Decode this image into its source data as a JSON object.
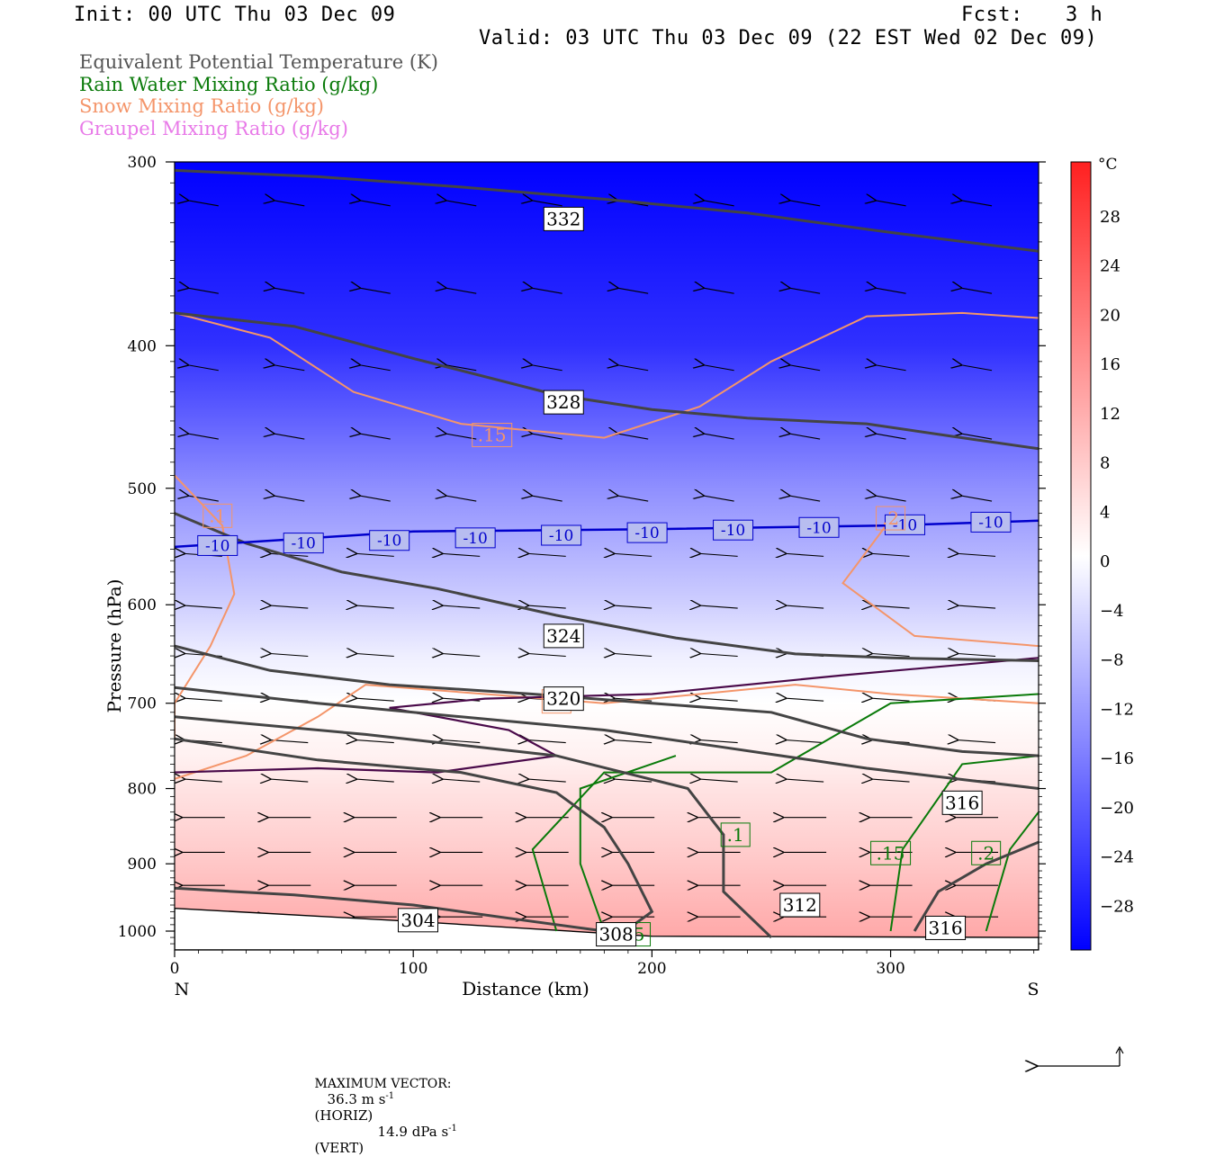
{
  "header": {
    "init": "Init: 00 UTC Thu 03 Dec 09",
    "fcst_label": "Fcst:",
    "fcst_value": "3 h",
    "valid": "Valid: 03 UTC Thu 03 Dec 09 (22 EST Wed 02 Dec 09)"
  },
  "legend": {
    "items": [
      {
        "label": "Equivalent Potential Temperature (K)",
        "color": "#555555"
      },
      {
        "label": "Rain Water Mixing Ratio (g/kg)",
        "color": "#0a7a0a"
      },
      {
        "label": "Snow Mixing Ratio (g/kg)",
        "color": "#f4956a"
      },
      {
        "label": "Graupel Mixing Ratio (g/kg)",
        "color": "#e87ae8"
      }
    ]
  },
  "footer": {
    "max_vector_label": "MAXIMUM VECTOR:",
    "horiz_value": "36.3 m s",
    "horiz_exp": "-1",
    "horiz_tag": "(HORIZ)",
    "vert_value": "14.9 dPa s",
    "vert_exp": "-1",
    "vert_tag": "(VERT)"
  },
  "chart_data": {
    "type": "heatmap",
    "xlabel": "Distance (km)",
    "ylabel": "Pressure (hPa)",
    "xlim": [
      0,
      362
    ],
    "ylim": [
      1030,
      300
    ],
    "y_scale": "log",
    "x_ticks": [
      0,
      100,
      200,
      300
    ],
    "y_ticks": [
      300,
      400,
      500,
      600,
      700,
      800,
      900,
      1000
    ],
    "end_labels": {
      "left": "N",
      "right": "S"
    },
    "colorbar": {
      "unit": "°C",
      "range": [
        -32,
        32
      ],
      "ticks": [
        28,
        24,
        20,
        16,
        12,
        8,
        4,
        0,
        -4,
        -8,
        -12,
        -16,
        -20,
        -24,
        -28
      ],
      "cold_color": "#0000ff",
      "warm_color": "#ff2020"
    },
    "theta_e_contours": [
      {
        "label": "332",
        "label_at": [
          163,
          328
        ],
        "points": [
          [
            0,
            304
          ],
          [
            60,
            307
          ],
          [
            120,
            312
          ],
          [
            180,
            318
          ],
          [
            240,
            325
          ],
          [
            300,
            335
          ],
          [
            362,
            345
          ]
        ]
      },
      {
        "label": "328",
        "label_at": [
          163,
          437
        ],
        "points": [
          [
            0,
            380
          ],
          [
            50,
            388
          ],
          [
            100,
            408
          ],
          [
            160,
            432
          ],
          [
            200,
            442
          ],
          [
            240,
            448
          ],
          [
            290,
            452
          ],
          [
            330,
            462
          ],
          [
            362,
            470
          ]
        ]
      },
      {
        "label": "324",
        "label_at": [
          163,
          630
        ],
        "points": [
          [
            0,
            520
          ],
          [
            30,
            545
          ],
          [
            70,
            570
          ],
          [
            110,
            585
          ],
          [
            160,
            610
          ],
          [
            210,
            632
          ],
          [
            260,
            648
          ],
          [
            300,
            652
          ],
          [
            362,
            655
          ]
        ]
      },
      {
        "label": "320",
        "label_at": [
          163,
          695
        ],
        "points": [
          [
            0,
            640
          ],
          [
            40,
            665
          ],
          [
            90,
            680
          ],
          [
            150,
            690
          ],
          [
            200,
            700
          ],
          [
            250,
            710
          ],
          [
            290,
            740
          ],
          [
            330,
            755
          ],
          [
            362,
            760
          ]
        ]
      },
      {
        "label": "316",
        "label_at": [
          330,
          818
        ],
        "points": [
          [
            0,
            683
          ],
          [
            60,
            700
          ],
          [
            120,
            715
          ],
          [
            180,
            730
          ],
          [
            230,
            750
          ],
          [
            290,
            775
          ],
          [
            362,
            800
          ]
        ]
      },
      {
        "label": "312",
        "label_at": [
          262,
          960
        ],
        "points": [
          [
            0,
            715
          ],
          [
            80,
            735
          ],
          [
            160,
            760
          ],
          [
            215,
            800
          ],
          [
            230,
            860
          ],
          [
            230,
            940
          ],
          [
            250,
            1010
          ]
        ]
      },
      {
        "label": "316",
        "label_at": [
          323,
          995
        ],
        "points": [
          [
            362,
            870
          ],
          [
            340,
            900
          ],
          [
            320,
            940
          ],
          [
            310,
            1000
          ]
        ]
      },
      {
        "label": "308",
        "label_at": [
          185,
          1005
        ],
        "points": [
          [
            0,
            740
          ],
          [
            60,
            765
          ],
          [
            120,
            780
          ],
          [
            160,
            805
          ],
          [
            180,
            850
          ],
          [
            190,
            900
          ],
          [
            200,
            970
          ],
          [
            185,
            1010
          ]
        ]
      },
      {
        "label": "304",
        "label_at": [
          102,
          983
        ],
        "points": [
          [
            0,
            935
          ],
          [
            50,
            945
          ],
          [
            100,
            960
          ],
          [
            140,
            980
          ],
          [
            180,
            1000
          ]
        ]
      }
    ],
    "temp_isotherm": {
      "label": "-10",
      "color": "#0000cc",
      "points": [
        [
          0,
          548
        ],
        [
          100,
          535
        ],
        [
          200,
          533
        ],
        [
          300,
          530
        ],
        [
          362,
          526
        ]
      ]
    },
    "snow_contours": [
      {
        "label": ".15",
        "label_at": [
          133,
          460
        ],
        "points": [
          [
            0,
            380
          ],
          [
            40,
            395
          ],
          [
            75,
            430
          ],
          [
            120,
            452
          ],
          [
            180,
            462
          ],
          [
            220,
            440
          ],
          [
            250,
            410
          ],
          [
            290,
            382
          ],
          [
            330,
            380
          ],
          [
            362,
            383
          ]
        ]
      },
      {
        "label": ".1",
        "label_at": [
          18,
          522
        ],
        "points": [
          [
            0,
            490
          ],
          [
            20,
            530
          ],
          [
            25,
            590
          ],
          [
            15,
            640
          ],
          [
            0,
            700
          ],
          [
            0,
            740
          ]
        ]
      },
      {
        "label": ".2",
        "label_at": [
          300,
          524
        ],
        "points": [
          [
            300,
            525
          ],
          [
            280,
            580
          ],
          [
            310,
            630
          ],
          [
            362,
            640
          ]
        ]
      },
      {
        "label": ".2",
        "label_at": [
          160,
          698
        ],
        "points": [
          [
            0,
            788
          ],
          [
            30,
            760
          ],
          [
            60,
            715
          ],
          [
            80,
            680
          ],
          [
            130,
            690
          ],
          [
            180,
            700
          ],
          [
            220,
            690
          ],
          [
            260,
            680
          ],
          [
            300,
            690
          ],
          [
            362,
            700
          ]
        ]
      }
    ],
    "rain_contours": [
      {
        "label": ".1",
        "label_at": [
          235,
          860
        ],
        "points": [
          [
            160,
            1000
          ],
          [
            150,
            880
          ],
          [
            180,
            780
          ],
          [
            250,
            780
          ],
          [
            300,
            700
          ],
          [
            362,
            690
          ]
        ]
      },
      {
        "label": ".15",
        "label_at": [
          300,
          885
        ],
        "points": [
          [
            300,
            1000
          ],
          [
            305,
            880
          ],
          [
            330,
            770
          ],
          [
            362,
            760
          ]
        ]
      },
      {
        "label": ".2",
        "label_at": [
          340,
          885
        ],
        "points": [
          [
            340,
            1000
          ],
          [
            350,
            880
          ],
          [
            362,
            830
          ]
        ]
      },
      {
        "label": ".05",
        "label_at": [
          191,
          1005
        ],
        "points": [
          [
            180,
            1000
          ],
          [
            170,
            900
          ],
          [
            170,
            800
          ],
          [
            210,
            760
          ]
        ]
      }
    ],
    "graupel_contours": [
      {
        "label": "",
        "points": [
          [
            0,
            780
          ],
          [
            60,
            775
          ],
          [
            110,
            780
          ],
          [
            160,
            760
          ],
          [
            140,
            730
          ],
          [
            90,
            705
          ],
          [
            130,
            695
          ],
          [
            200,
            690
          ],
          [
            280,
            670
          ],
          [
            362,
            652
          ]
        ]
      }
    ]
  }
}
